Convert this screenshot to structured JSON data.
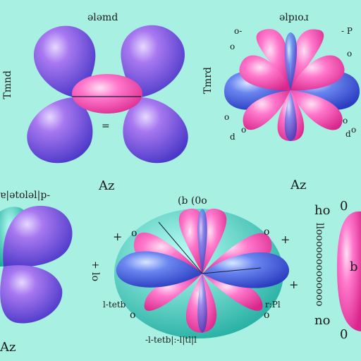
{
  "panels": {
    "top_left": {
      "title": "ǝlǝmd",
      "side_label": "Tmnd",
      "bottom_label": "="
    },
    "top_right": {
      "title": "ǝlpıoɹ",
      "side_label": "Tmrd",
      "labels": [
        "o-",
        "- P",
        "o",
        "o",
        "o",
        "o",
        "d",
        "o",
        "o",
        "d"
      ]
    },
    "middle": {
      "left_az": "Az",
      "right_az": "Az"
    },
    "bottom_left": {
      "title": "ɐ|ǝtolǝl|p-",
      "corner": "Az"
    },
    "bottom_center": {
      "top_label": "(b (0o",
      "left_plus": "+",
      "right_plus": "+",
      "left_o": "o",
      "right_o": "o",
      "left_mid": "+ lo",
      "right_plus2": "+",
      "left_text": "l-tetb",
      "right_text": "r:Pl",
      "bottom_left_o": "o",
      "bottom_right_o": "o",
      "bottom_text": "-l-tetb|:-l|tl|l"
    },
    "bottom_right": {
      "top_label": "ho",
      "top_zero": "0",
      "side_text": "llooooooooooooo",
      "bottom_zero": "0",
      "bottom_label": "no",
      "side_bracket": "b"
    }
  },
  "colors": {
    "background": "#a8f0e2",
    "lobe_violet": "#8a55e8",
    "lobe_blue": "#4e6ee0",
    "lobe_pink": "#ff5fc0",
    "lobe_teal": "#2ec4b6"
  }
}
